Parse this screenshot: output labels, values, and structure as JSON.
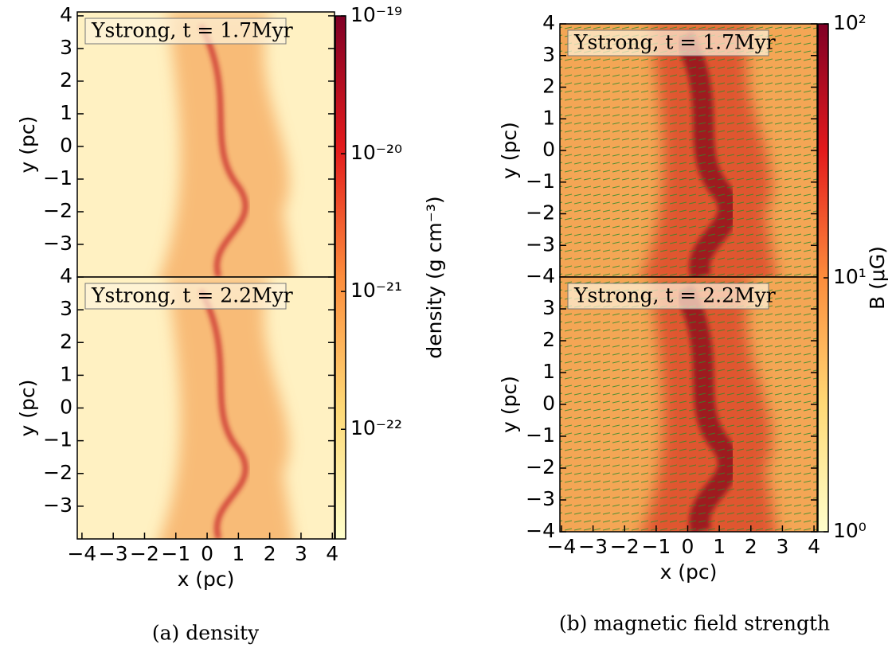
{
  "chart_data": [
    {
      "type": "heatmap",
      "caption": "(a) density",
      "xlabel": "x (pc)",
      "ylabel": "y (pc)",
      "panels": [
        {
          "annotation": "Ystrong, t = 1.7Myr",
          "xlim": [
            -4.15,
            4.07
          ],
          "ylim": [
            -4,
            4.12
          ],
          "yticks": [
            {
              "value": -3,
              "label": "−3"
            },
            {
              "value": -2,
              "label": "−2"
            },
            {
              "value": -1,
              "label": "−1"
            },
            0,
            1,
            2,
            3,
            4
          ]
        },
        {
          "annotation": "Ystrong, t = 2.2Myr",
          "xlim": [
            -4.15,
            4.07
          ],
          "ylim": [
            -4,
            4
          ],
          "xticks": [
            {
              "value": -4,
              "label": "−4"
            },
            {
              "value": -3,
              "label": "−3"
            },
            {
              "value": -2,
              "label": "−2"
            },
            {
              "value": -1,
              "label": "−1"
            },
            0,
            1,
            2,
            3,
            4
          ],
          "yticks": [
            {
              "value": -3,
              "label": "−3"
            },
            {
              "value": -2,
              "label": "−2"
            },
            {
              "value": -1,
              "label": "−1"
            },
            0,
            1,
            2,
            3,
            4
          ]
        }
      ],
      "colorbar": {
        "label": "density (g cm⁻³)",
        "log": true,
        "ylim": [
          1.6e-23,
          1e-19
        ],
        "yticks": [
          {
            "value": 1e-22,
            "label": "10⁻²²"
          },
          {
            "value": 1e-21,
            "label": "10⁻²¹"
          },
          {
            "value": 1e-20,
            "label": "10⁻²⁰"
          },
          {
            "value": 1e-19,
            "label": "10⁻¹⁹"
          }
        ]
      }
    },
    {
      "type": "heatmap",
      "caption": "(b) magnetic field strength",
      "xlabel": "x (pc)",
      "ylabel": "y (pc)",
      "panels": [
        {
          "annotation": "Ystrong, t = 1.7Myr",
          "xlim": [
            -4.05,
            4.1
          ],
          "ylim": [
            -4,
            4
          ],
          "yticks": [
            {
              "value": -4,
              "label": "−4"
            },
            {
              "value": -3,
              "label": "−3"
            },
            {
              "value": -2,
              "label": "−2"
            },
            {
              "value": -1,
              "label": "−1"
            },
            0,
            1,
            2,
            3,
            4
          ]
        },
        {
          "annotation": "Ystrong, t = 2.2Myr",
          "xlim": [
            -4.05,
            4.1
          ],
          "ylim": [
            -4,
            4
          ],
          "xticks": [
            {
              "value": -4,
              "label": "−4"
            },
            {
              "value": -3,
              "label": "−3"
            },
            {
              "value": -2,
              "label": "−2"
            },
            {
              "value": -1,
              "label": "−1"
            },
            0,
            1,
            2,
            3,
            4
          ],
          "yticks": [
            {
              "value": -4,
              "label": "−4"
            },
            {
              "value": -3,
              "label": "−3"
            },
            {
              "value": -2,
              "label": "−2"
            },
            {
              "value": -1,
              "label": "−1"
            },
            0,
            1,
            2,
            3
          ]
        }
      ],
      "colorbar": {
        "label": "B (μG)",
        "log": true,
        "ylim": [
          1,
          100
        ],
        "yticks": [
          {
            "value": 1,
            "label": "10⁰"
          },
          {
            "value": 10,
            "label": "10¹"
          },
          {
            "value": 100,
            "label": "10²"
          }
        ]
      }
    }
  ]
}
